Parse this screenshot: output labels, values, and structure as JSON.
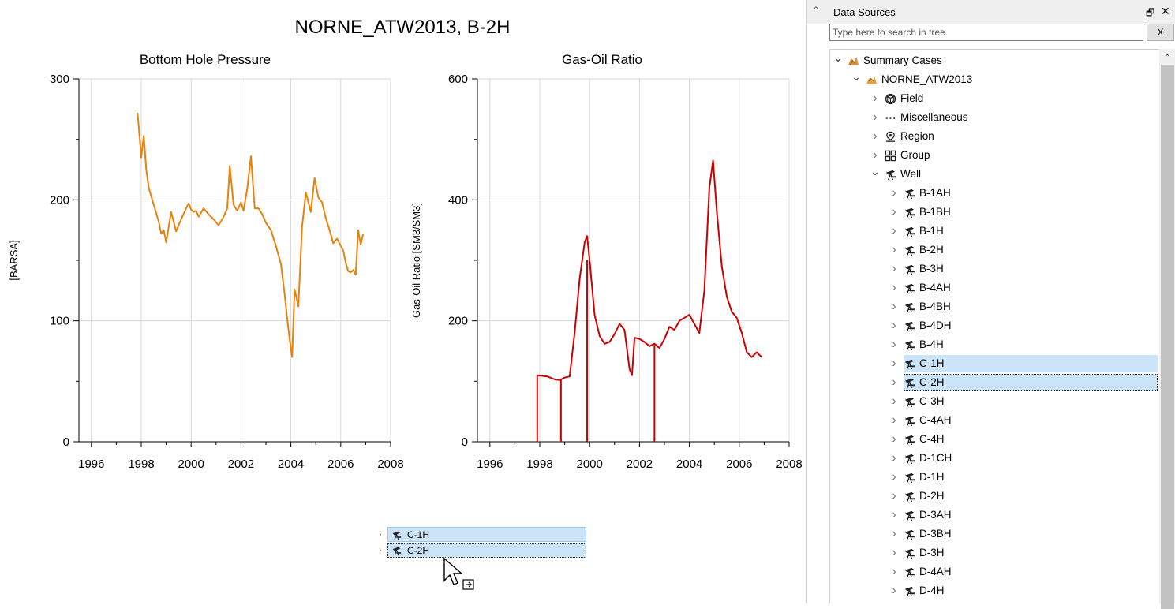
{
  "plot": {
    "main_title": "NORNE_ATW2013, B-2H"
  },
  "chart_data": [
    {
      "type": "line",
      "title": "Bottom Hole Pressure",
      "ylabel": "[BARSA]",
      "xlabel": "",
      "x_ticks": [
        "1996",
        "1998",
        "2000",
        "2002",
        "2004",
        "2006",
        "2008"
      ],
      "y_ticks": [
        "0",
        "100",
        "200",
        "300"
      ],
      "xlim": [
        1995.5,
        2008
      ],
      "ylim": [
        0,
        300
      ],
      "grid": true,
      "color": "#e8820e",
      "series": [
        {
          "x": [
            1997.85,
            1997.95,
            1998.0,
            1998.1,
            1998.2,
            1998.3,
            1998.5,
            1998.7,
            1998.8,
            1998.9,
            1999.0,
            1999.2,
            1999.4,
            1999.6,
            1999.8,
            1999.9,
            2000.0,
            2000.1,
            2000.2,
            2000.3,
            2000.5,
            2000.7,
            2000.9,
            2001.1,
            2001.3,
            2001.45,
            2001.55,
            2001.7,
            2001.85,
            2002.0,
            2002.1,
            2002.25,
            2002.4,
            2002.55,
            2002.7,
            2002.85,
            2003.0,
            2003.2,
            2003.4,
            2003.6,
            2003.75,
            2003.85,
            2003.95,
            2004.05,
            2004.15,
            2004.3,
            2004.45,
            2004.6,
            2004.8,
            2004.95,
            2005.1,
            2005.25,
            2005.4,
            2005.55,
            2005.7,
            2005.85,
            2006.0,
            2006.1,
            2006.2,
            2006.3,
            2006.4,
            2006.5,
            2006.6,
            2006.7,
            2006.8,
            2006.9
          ],
          "y": [
            272,
            248,
            235,
            253,
            225,
            210,
            196,
            182,
            172,
            175,
            165,
            190,
            174,
            184,
            193,
            197,
            192,
            190,
            191,
            186,
            193,
            188,
            184,
            179,
            186,
            193,
            228,
            196,
            191,
            198,
            191,
            209,
            236,
            193,
            193,
            188,
            181,
            175,
            162,
            147,
            122,
            102,
            85,
            70,
            126,
            112,
            178,
            206,
            190,
            218,
            202,
            198,
            185,
            175,
            164,
            168,
            162,
            158,
            148,
            141,
            140,
            142,
            138,
            175,
            163,
            172
          ]
        }
      ]
    },
    {
      "type": "line",
      "title": "Gas-Oil Ratio",
      "ylabel": "Gas-Oil Ratio [SM3/SM3]",
      "xlabel": "",
      "x_ticks": [
        "1996",
        "1998",
        "2000",
        "2002",
        "2004",
        "2006",
        "2008"
      ],
      "y_ticks": [
        "0",
        "200",
        "400",
        "600"
      ],
      "xlim": [
        1995.5,
        2008
      ],
      "ylim": [
        0,
        600
      ],
      "grid": true,
      "color": "#cc0000",
      "series": [
        {
          "x": [
            1997.9,
            1997.9,
            1998.3,
            1998.6,
            1998.8,
            1999.0,
            1999.2,
            1999.4,
            1999.6,
            1999.8,
            1999.9,
            2000.0,
            2000.2,
            2000.4,
            2000.6,
            2000.8,
            2001.0,
            2001.2,
            2001.4,
            2001.6,
            2001.7,
            2001.8,
            2002.0,
            2002.2,
            2002.4,
            2002.6,
            2002.8,
            2003.0,
            2003.2,
            2003.4,
            2003.6,
            2003.8,
            2004.0,
            2004.2,
            2004.4,
            2004.6,
            2004.8,
            2004.95,
            2005.1,
            2005.3,
            2005.5,
            2005.7,
            2005.9,
            2006.1,
            2006.3,
            2006.5,
            2006.7,
            2006.9
          ],
          "y": [
            0,
            110,
            108,
            103,
            102,
            106,
            108,
            180,
            270,
            330,
            340,
            300,
            210,
            175,
            162,
            165,
            178,
            195,
            185,
            120,
            110,
            172,
            170,
            165,
            158,
            162,
            155,
            170,
            190,
            185,
            200,
            205,
            210,
            195,
            180,
            250,
            420,
            465,
            380,
            290,
            240,
            215,
            205,
            180,
            148,
            140,
            148,
            140
          ]
        }
      ]
    }
  ],
  "drag_ghost": {
    "items": [
      {
        "label": "C-1H",
        "icon": "well-icon"
      },
      {
        "label": "C-2H",
        "icon": "well-icon"
      }
    ]
  },
  "panel": {
    "title": "Data Sources",
    "float_glyph": "🗗",
    "close_glyph": "✕",
    "search_placeholder": "Type here to search in tree.",
    "clear_label": "X",
    "tree": [
      {
        "label": "Summary Cases",
        "icon": "summary-cases-icon",
        "level": 0,
        "expanded": true
      },
      {
        "label": "NORNE_ATW2013",
        "icon": "case-icon",
        "level": 1,
        "expanded": true
      },
      {
        "label": "Field",
        "icon": "field-icon",
        "level": 2
      },
      {
        "label": "Miscellaneous",
        "icon": "misc-icon",
        "level": 2
      },
      {
        "label": "Region",
        "icon": "region-icon",
        "level": 2
      },
      {
        "label": "Group",
        "icon": "group-icon",
        "level": 2
      },
      {
        "label": "Well",
        "icon": "well-icon",
        "level": 2,
        "expanded": true
      },
      {
        "label": "B-1AH",
        "icon": "well-icon",
        "level": 3
      },
      {
        "label": "B-1BH",
        "icon": "well-icon",
        "level": 3
      },
      {
        "label": "B-1H",
        "icon": "well-icon",
        "level": 3
      },
      {
        "label": "B-2H",
        "icon": "well-icon",
        "level": 3
      },
      {
        "label": "B-3H",
        "icon": "well-icon",
        "level": 3
      },
      {
        "label": "B-4AH",
        "icon": "well-icon",
        "level": 3
      },
      {
        "label": "B-4BH",
        "icon": "well-icon",
        "level": 3
      },
      {
        "label": "B-4DH",
        "icon": "well-icon",
        "level": 3
      },
      {
        "label": "B-4H",
        "icon": "well-icon",
        "level": 3
      },
      {
        "label": "C-1H",
        "icon": "well-icon",
        "level": 3,
        "selected": true
      },
      {
        "label": "C-2H",
        "icon": "well-icon",
        "level": 3,
        "selected": true,
        "focused": true
      },
      {
        "label": "C-3H",
        "icon": "well-icon",
        "level": 3
      },
      {
        "label": "C-4AH",
        "icon": "well-icon",
        "level": 3
      },
      {
        "label": "C-4H",
        "icon": "well-icon",
        "level": 3
      },
      {
        "label": "D-1CH",
        "icon": "well-icon",
        "level": 3
      },
      {
        "label": "D-1H",
        "icon": "well-icon",
        "level": 3
      },
      {
        "label": "D-2H",
        "icon": "well-icon",
        "level": 3
      },
      {
        "label": "D-3AH",
        "icon": "well-icon",
        "level": 3
      },
      {
        "label": "D-3BH",
        "icon": "well-icon",
        "level": 3
      },
      {
        "label": "D-3H",
        "icon": "well-icon",
        "level": 3
      },
      {
        "label": "D-4AH",
        "icon": "well-icon",
        "level": 3
      },
      {
        "label": "D-4H",
        "icon": "well-icon",
        "level": 3
      }
    ]
  }
}
